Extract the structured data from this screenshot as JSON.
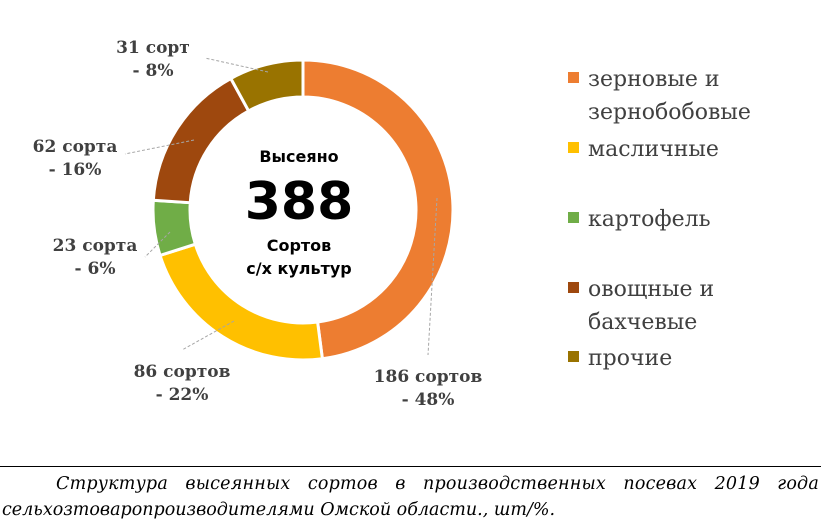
{
  "chart_data": {
    "type": "donut",
    "title": "",
    "center": {
      "line1": "Высеяно",
      "value": "388",
      "line2": "Сортов",
      "line3": "с/х культур"
    },
    "categories": [
      "зерновые и зернобобовые",
      "масличные",
      "картофель",
      "овощные и бахчевые",
      "прочие"
    ],
    "values": [
      186,
      86,
      23,
      62,
      31
    ],
    "percent": [
      48,
      22,
      6,
      16,
      8
    ],
    "data_labels": [
      [
        "186 сортов",
        "- 48%"
      ],
      [
        "86 сортов",
        "- 22%"
      ],
      [
        "23 сорта",
        "- 6%"
      ],
      [
        "62 сорта",
        "- 16%"
      ],
      [
        "31 сорт",
        "- 8%"
      ]
    ],
    "colors": [
      "#ED7D31",
      "#FFC000",
      "#70AD47",
      "#9E480E",
      "#997300"
    ],
    "legend": {
      "position": "right",
      "entries": [
        {
          "lines": [
            "зерновые и",
            "зернобобовые"
          ],
          "color": "#ED7D31"
        },
        {
          "lines": [
            "масличные"
          ],
          "color": "#FFC000"
        },
        {
          "lines": [
            "картофель"
          ],
          "color": "#70AD47"
        },
        {
          "lines": [
            "овощные и",
            "бахчевые"
          ],
          "color": "#9E480E"
        },
        {
          "lines": [
            "прочие"
          ],
          "color": "#997300"
        }
      ]
    }
  },
  "caption": {
    "line1": "Структура высеянных сортов в производственных посевах 2019 года",
    "line2": "сельхозтоваропроизводителями Омской области., шт/%."
  }
}
